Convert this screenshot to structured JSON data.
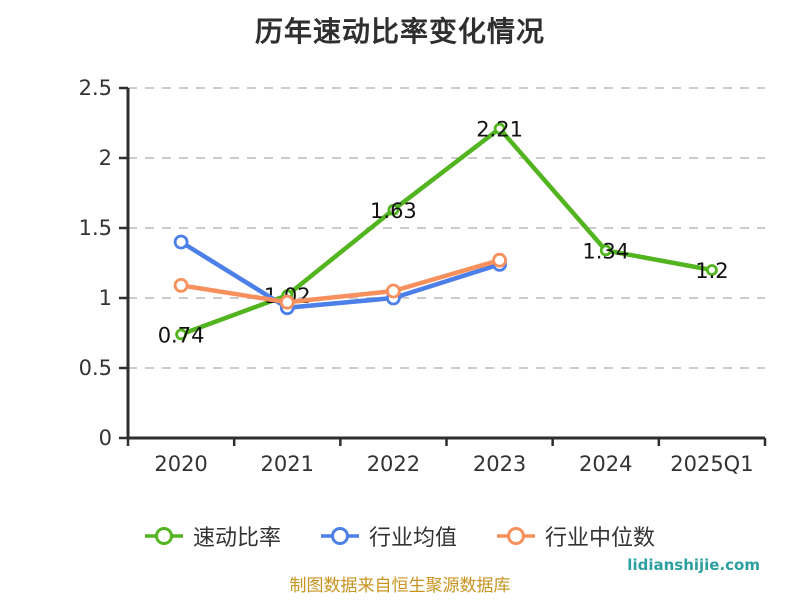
{
  "title": "历年速动比率变化情况",
  "footer": {
    "source_note": "制图数据来自恒生聚源数据库",
    "watermark": "lidianshijie.com"
  },
  "colors": {
    "quick_ratio": "#52b41f",
    "industry_avg": "#4d7fe8",
    "industry_median": "#f8905d",
    "axis": "#2e2e2e",
    "grid": "#cccccc",
    "data_label": "#111111",
    "source_note": "#c8941f",
    "watermark": "#2d9fa0"
  },
  "chart_data": {
    "type": "line",
    "categories": [
      "2020",
      "2021",
      "2022",
      "2023",
      "2024",
      "2025Q1"
    ],
    "series": [
      {
        "key": "quick_ratio",
        "name": "速动比率",
        "color_key": "quick_ratio",
        "values": [
          0.74,
          1.02,
          1.63,
          2.21,
          1.34,
          1.2
        ],
        "labels": [
          "0.74",
          "1.02",
          "1.63",
          "2.21",
          "1.34",
          "1.2"
        ],
        "show_labels": true
      },
      {
        "key": "industry_avg",
        "name": "行业均值",
        "color_key": "industry_avg",
        "values": [
          1.4,
          0.93,
          1.0,
          1.24,
          null,
          null
        ],
        "show_labels": false
      },
      {
        "key": "industry_median",
        "name": "行业中位数",
        "color_key": "industry_median",
        "values": [
          1.09,
          0.97,
          1.05,
          1.27,
          null,
          null
        ],
        "show_labels": false
      }
    ],
    "ylim": [
      0,
      2.5
    ],
    "y_ticks": [
      0,
      0.5,
      1,
      1.5,
      2,
      2.5
    ],
    "y_tick_labels": [
      "0",
      "0.5",
      "1",
      "1.5",
      "2",
      "2.5"
    ],
    "grid": "horizontal-dashed",
    "legend_position": "bottom"
  }
}
